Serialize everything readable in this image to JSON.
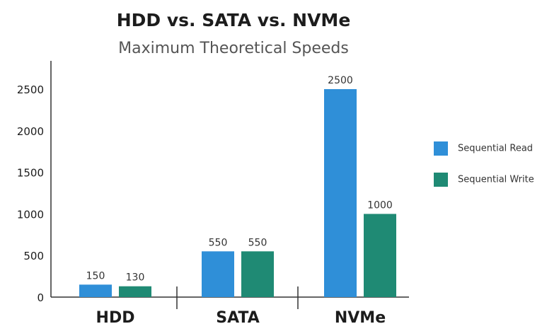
{
  "chart_data": {
    "type": "bar",
    "title": "HDD vs. SATA vs. NVMe",
    "subtitle": "Maximum Theoretical Speeds",
    "categories": [
      "HDD",
      "SATA",
      "NVMe"
    ],
    "series": [
      {
        "name": "Sequential Read",
        "color": "#2f8fd8",
        "values": [
          150,
          550,
          2500
        ]
      },
      {
        "name": "Sequential Write",
        "color": "#1f8a74",
        "values": [
          130,
          550,
          1000
        ]
      }
    ],
    "ylim": [
      0,
      2500
    ],
    "yticks": [
      "0",
      "500",
      "1000",
      "1500",
      "2000",
      "2500"
    ],
    "grid": false,
    "legend": "right"
  }
}
